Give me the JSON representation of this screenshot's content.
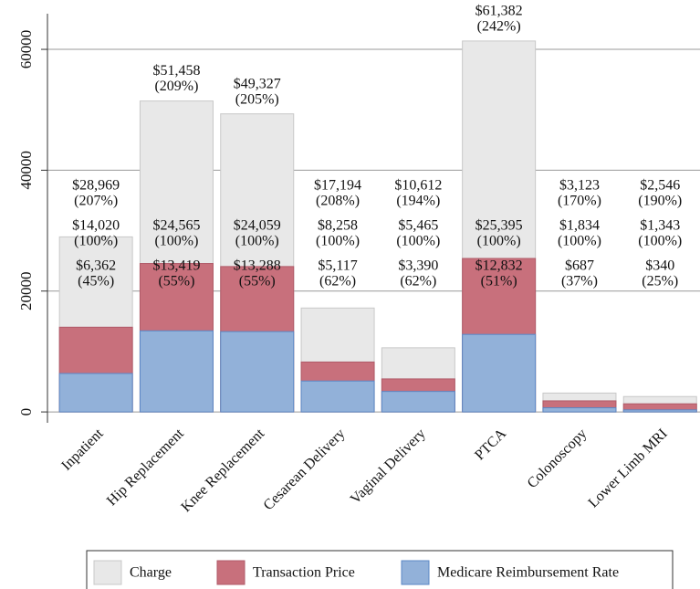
{
  "chart_data": {
    "type": "bar",
    "categories": [
      "Inpatient",
      "Hip Replacement",
      "Knee Replacement",
      "Cesarean Delivery",
      "Vaginal Delivery",
      "PTCA",
      "Colonoscopy",
      "Lower Limb MRI"
    ],
    "series": [
      {
        "name": "Charge",
        "color": "#e8e8e8",
        "values": [
          28969,
          51458,
          49327,
          17194,
          10612,
          61382,
          3123,
          2546
        ],
        "value_labels": [
          "$28,969",
          "$51,458",
          "$49,327",
          "$17,194",
          "$10,612",
          "$61,382",
          "$3,123",
          "$2,546"
        ],
        "percent_labels": [
          "(207%)",
          "(209%)",
          "(205%)",
          "(208%)",
          "(194%)",
          "(242%)",
          "(170%)",
          "(190%)"
        ]
      },
      {
        "name": "Transaction Price",
        "color": "#c8707c",
        "values": [
          14020,
          24565,
          24059,
          8258,
          5465,
          25395,
          1834,
          1343
        ],
        "value_labels": [
          "$14,020",
          "$24,565",
          "$24,059",
          "$8,258",
          "$5,465",
          "$25,395",
          "$1,834",
          "$1,343"
        ],
        "percent_labels": [
          "(100%)",
          "(100%)",
          "(100%)",
          "(100%)",
          "(100%)",
          "(100%)",
          "(100%)",
          "(100%)"
        ]
      },
      {
        "name": "Medicare Reimbursement Rate",
        "color": "#92b1d9",
        "values": [
          6362,
          13419,
          13288,
          5117,
          3390,
          12832,
          687,
          340
        ],
        "value_labels": [
          "$6,362",
          "$13,419",
          "$13,288",
          "$5,117",
          "$3,390",
          "$12,832",
          "$687",
          "$340"
        ],
        "percent_labels": [
          "(45%)",
          "(55%)",
          "(55%)",
          "(62%)",
          "(62%)",
          "(51%)",
          "(37%)",
          "(25%)"
        ]
      }
    ],
    "ylim": [
      -1800,
      65900
    ],
    "yticks": [
      0,
      20000,
      40000,
      60000
    ],
    "grid": true,
    "legend": "bottom"
  }
}
